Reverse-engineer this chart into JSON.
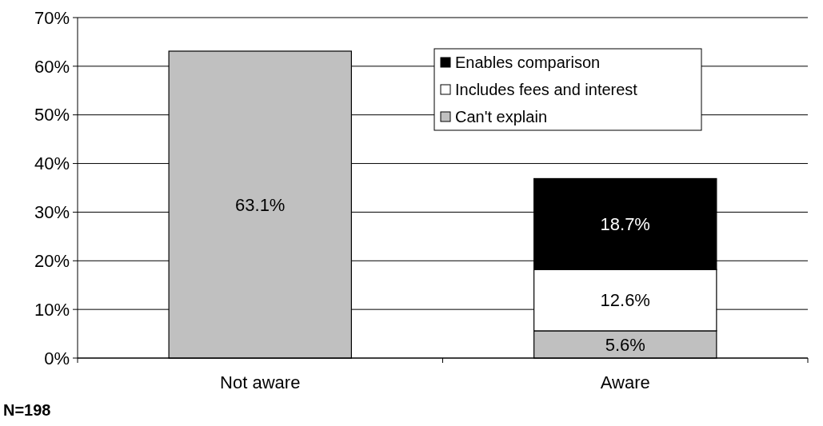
{
  "chart_data": {
    "type": "bar",
    "stacked": true,
    "categories": [
      "Not aware",
      "Aware"
    ],
    "series": [
      {
        "name": "Can't explain",
        "color": "#c0c0c0",
        "values": [
          63.1,
          5.6
        ],
        "value_labels": [
          "63.1%",
          "5.6%"
        ]
      },
      {
        "name": "Includes fees and interest",
        "color": "#ffffff",
        "values": [
          null,
          12.6
        ],
        "value_labels": [
          null,
          "12.6%"
        ]
      },
      {
        "name": "Enables comparison",
        "color": "#000000",
        "values": [
          null,
          18.7
        ],
        "value_labels": [
          null,
          "18.7%"
        ]
      }
    ],
    "ylim": [
      0,
      70
    ],
    "yticks": [
      {
        "value": 0,
        "label": "0%"
      },
      {
        "value": 10,
        "label": "10%"
      },
      {
        "value": 20,
        "label": "20%"
      },
      {
        "value": 30,
        "label": "30%"
      },
      {
        "value": 40,
        "label": "40%"
      },
      {
        "value": 50,
        "label": "50%"
      },
      {
        "value": 60,
        "label": "60%"
      },
      {
        "value": 70,
        "label": "70%"
      }
    ],
    "grid": "y",
    "legend": "top right",
    "annotations": [
      "N=198"
    ]
  }
}
